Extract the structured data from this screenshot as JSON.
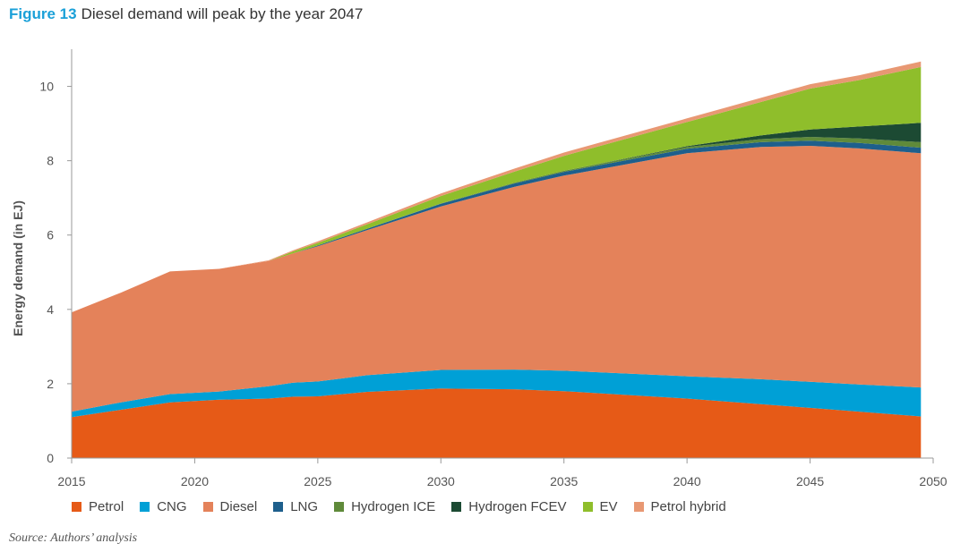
{
  "title": {
    "figure": "Figure 13",
    "text": "Diesel demand will peak by the year 2047"
  },
  "source": "Source: Authors’ analysis",
  "chart_data": {
    "type": "area",
    "stacked": true,
    "ylabel": "Energy demand (in EJ)",
    "xlabel": "",
    "xlim": [
      2015,
      2050
    ],
    "ylim": [
      0,
      11
    ],
    "xticks": [
      2015,
      2020,
      2025,
      2030,
      2035,
      2040,
      2045,
      2050
    ],
    "yticks": [
      0,
      2,
      4,
      6,
      8,
      10
    ],
    "grid": false,
    "legend_position": "bottom",
    "x": [
      2015,
      2017,
      2019,
      2021,
      2023,
      2024,
      2025,
      2027,
      2030,
      2033,
      2035,
      2040,
      2043,
      2045,
      2047,
      2049.5
    ],
    "series": [
      {
        "name": "Petrol",
        "color": "#e65a17",
        "values": [
          1.1,
          1.3,
          1.5,
          1.57,
          1.6,
          1.65,
          1.66,
          1.78,
          1.87,
          1.85,
          1.8,
          1.6,
          1.45,
          1.35,
          1.25,
          1.12
        ]
      },
      {
        "name": "CNG",
        "color": "#00a0d6",
        "values": [
          0.15,
          0.2,
          0.22,
          0.22,
          0.33,
          0.38,
          0.4,
          0.45,
          0.5,
          0.53,
          0.55,
          0.6,
          0.67,
          0.7,
          0.73,
          0.78
        ]
      },
      {
        "name": "Diesel",
        "color": "#e4825a",
        "values": [
          2.67,
          2.95,
          3.3,
          3.3,
          3.37,
          3.48,
          3.64,
          3.9,
          4.4,
          4.92,
          5.25,
          6.0,
          6.25,
          6.35,
          6.35,
          6.3
        ]
      },
      {
        "name": "LNG",
        "color": "#1e5f8c",
        "values": [
          0,
          0,
          0,
          0,
          0,
          0,
          0.02,
          0.04,
          0.07,
          0.09,
          0.1,
          0.12,
          0.13,
          0.14,
          0.15,
          0.15
        ]
      },
      {
        "name": "Hydrogen ICE",
        "color": "#5f8a3a",
        "values": [
          0,
          0,
          0,
          0,
          0,
          0,
          0,
          0,
          0.01,
          0.02,
          0.03,
          0.05,
          0.08,
          0.1,
          0.12,
          0.15
        ]
      },
      {
        "name": "Hydrogen FCEV",
        "color": "#1c4a33",
        "values": [
          0,
          0,
          0,
          0,
          0,
          0,
          0,
          0,
          0,
          0,
          0,
          0.02,
          0.1,
          0.2,
          0.32,
          0.52
        ]
      },
      {
        "name": "EV",
        "color": "#8fbe2b",
        "values": [
          0,
          0,
          0,
          0,
          0,
          0.05,
          0.07,
          0.12,
          0.2,
          0.3,
          0.4,
          0.65,
          0.9,
          1.1,
          1.25,
          1.5
        ]
      },
      {
        "name": "Petrol hybrid",
        "color": "#e89873",
        "values": [
          0,
          0,
          0,
          0,
          0.02,
          0.03,
          0.04,
          0.05,
          0.07,
          0.08,
          0.09,
          0.1,
          0.11,
          0.12,
          0.13,
          0.15
        ]
      }
    ]
  }
}
